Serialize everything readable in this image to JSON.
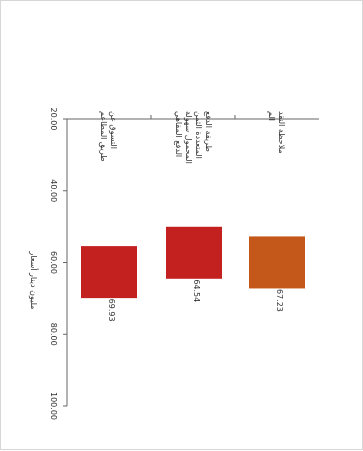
{
  "chart_data": {
    "type": "bar",
    "orientation": "rotated-90-clockwise",
    "categories": [
      "ملاحظة النقد الم",
      "طريقة الدفع المتعددة الثمن المحمول سهولة الدفع المقاهي",
      "التسوق عن طريق المطاعم"
    ],
    "values": [
      67.23,
      64.54,
      69.93
    ],
    "value_labels": [
      "67.23",
      "64.54",
      "69.93"
    ],
    "colors": [
      "#c4581a",
      "#c32020",
      "#c32020"
    ],
    "ylabel": "مليون دينار أسعار",
    "ylim": [
      20,
      100
    ],
    "ticks": [
      "20.00",
      "40.00",
      "60.00",
      "80.00",
      "100.00"
    ],
    "legend": "none",
    "grid": false
  }
}
